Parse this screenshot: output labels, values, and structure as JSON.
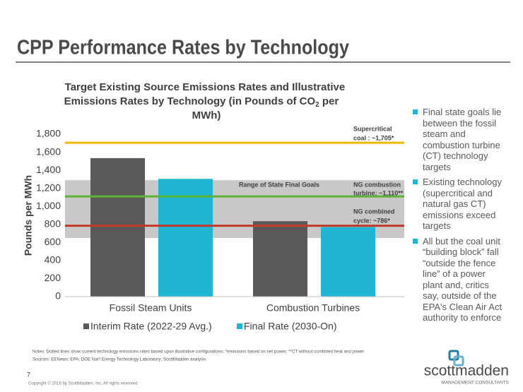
{
  "slide": {
    "title": "CPP Performance Rates by Technology",
    "bullets": [
      "Final state goals lie between the fossil steam and combustion turbine (CT) technology targets",
      "Existing technology (supercritical and natural gas CT) emissions exceed targets",
      "All but the coal unit “building block” fall “outside the fence line” of a power plant and, critics say, outside of the EPA's Clean Air Act authority to enforce"
    ],
    "notes": [
      "Notes:  Dotted lines show current technology emissions rates based upon illustrative configurations; *emissions based on net power; **CT without combined heat and power",
      "Sources:  EENews; EPA; DOE Nat'l Energy Technology Laboratory; ScottMadden analysis"
    ],
    "page": "7",
    "copyright": "Copyright © 2016 by ScottMadden, Inc. All rights reserved.",
    "logo": {
      "name": "scottmadden",
      "tagline": "MANAGEMENT CONSULTANTS"
    }
  },
  "chart_data": {
    "type": "bar",
    "title": [
      "Target Existing Source Emissions Rates and Illustrative",
      "Emissions Rates by Technology (in Pounds of CO",
      "2",
      " per",
      "MWh)"
    ],
    "ylabel": "Pounds per MWh",
    "categories": [
      "Fossil Steam Units",
      "Combustion Turbines"
    ],
    "series": [
      {
        "name": "Interim Rate (2022-29 Avg.)",
        "color": "#595959",
        "values": [
          1535,
          836
        ]
      },
      {
        "name": "Final Rate (2030-On)",
        "color": "#1fb5d3",
        "values": [
          1305,
          771
        ]
      }
    ],
    "ylim": [
      0,
      1800
    ],
    "yticks": [
      0,
      200,
      400,
      600,
      800,
      {
        "value": 1000,
        "label": "1,000"
      },
      {
        "value": 1200,
        "label": "1,200"
      },
      {
        "value": 1400,
        "label": "1,400"
      },
      {
        "value": 1600,
        "label": "1,600"
      },
      {
        "value": 1800,
        "label": "1,800"
      }
    ],
    "range": {
      "values": [
        650,
        1290
      ],
      "label": "Range of State Final Goals",
      "color": "#c8c8c8"
    },
    "reference_lines": [
      {
        "value": 1705,
        "color": "#f2b700",
        "label": [
          "Supercritical",
          "coal : ~1,705*"
        ]
      },
      {
        "value": 1110,
        "color": "#5cb338",
        "label": [
          "NG combustion",
          "turbine: ~1,110**"
        ]
      },
      {
        "value": 786,
        "color": "#c0392b",
        "label": [
          "NG combined",
          "cycle: ~786*"
        ]
      }
    ]
  }
}
